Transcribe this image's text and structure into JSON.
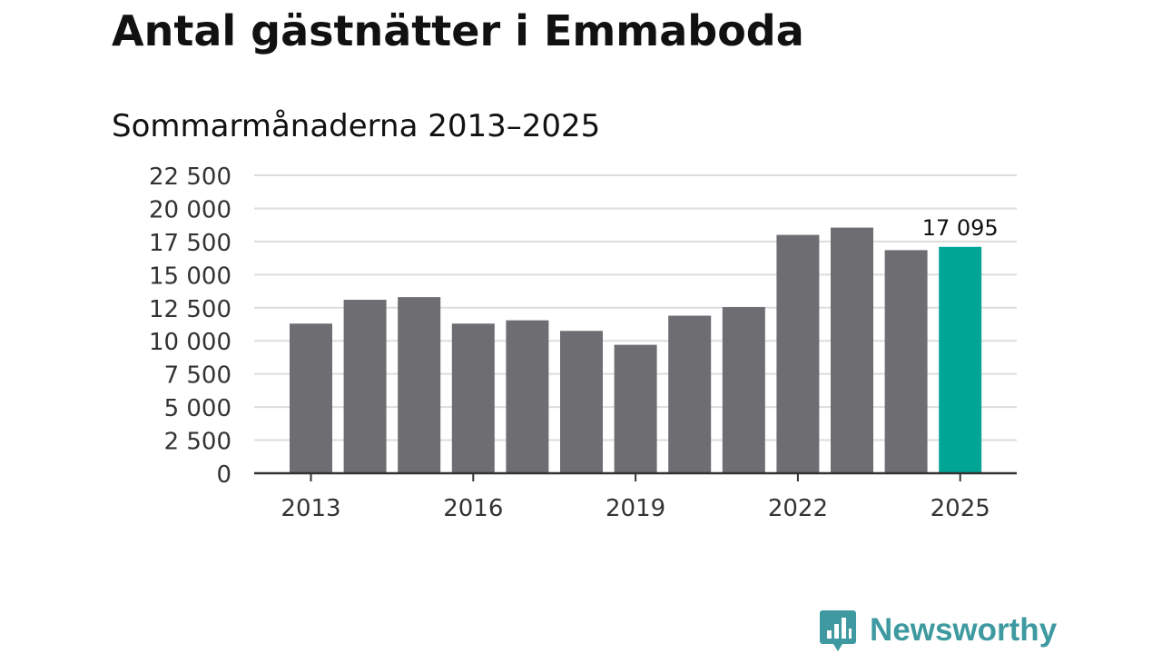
{
  "header": {
    "title": "Antal gästnätter i Emmaboda",
    "subtitle": "Sommarmånaderna 2013–2025"
  },
  "chart_data": {
    "type": "bar",
    "categories": [
      "2013",
      "2014",
      "2015",
      "2016",
      "2017",
      "2018",
      "2019",
      "2020",
      "2021",
      "2022",
      "2023",
      "2024",
      "2025"
    ],
    "values": [
      11300,
      13100,
      13300,
      11300,
      11550,
      10750,
      9700,
      11900,
      12550,
      18000,
      18550,
      16850,
      17095
    ],
    "title": "Antal gästnätter i Emmaboda",
    "subtitle": "Sommarmånaderna 2013–2025",
    "xlabel": "",
    "ylabel": "",
    "ylim": [
      0,
      22500
    ],
    "yticks": [
      0,
      2500,
      5000,
      7500,
      10000,
      12500,
      15000,
      17500,
      20000,
      22500
    ],
    "ytick_labels": [
      "0",
      "2 500",
      "5 000",
      "7 500",
      "10 000",
      "12 500",
      "15 000",
      "17 500",
      "20 000",
      "22 500"
    ],
    "xtick_labels": [
      "2013",
      "2016",
      "2019",
      "2022",
      "2025"
    ],
    "highlight_index": 12,
    "highlight_label": "17 095",
    "grid": true,
    "colors": {
      "bar": "#6e6d72",
      "highlight": "#00a596",
      "grid": "#dddddd",
      "axis": "#333333",
      "tick_text": "#333333"
    }
  },
  "branding": {
    "logo_name": "bar-chart-speech-bubble-icon",
    "name": "Newsworthy",
    "color": "#3e9aa0"
  }
}
